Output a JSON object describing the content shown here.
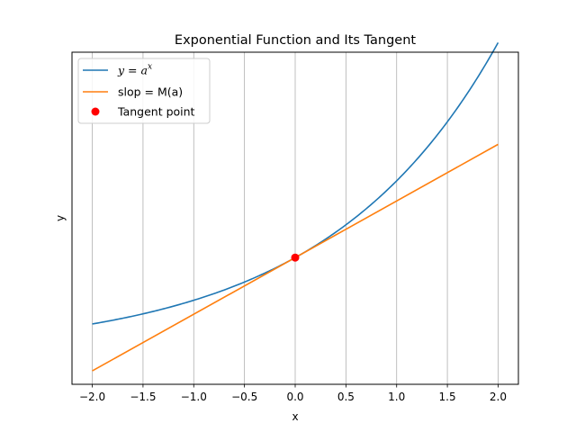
{
  "chart_data": {
    "type": "line",
    "title": "Exponential Function and Its Tangent",
    "xlabel": "x",
    "ylabel": "y",
    "xlim": [
      -2.2,
      2.2
    ],
    "ylim": [
      -0.32,
      3.14
    ],
    "xticks": [
      -2.0,
      -1.5,
      -1.0,
      -0.5,
      0.0,
      0.5,
      1.0,
      1.5,
      2.0
    ],
    "xtick_labels": [
      "−2.0",
      "−1.5",
      "−1.0",
      "−0.5",
      "0.0",
      "0.5",
      "1.0",
      "1.5",
      "2.0"
    ],
    "yticks_visible": false,
    "grid": "vertical",
    "legend_placement": "top-left",
    "base_a": 1.8,
    "series": [
      {
        "name": "$y = a^x$",
        "legend_label": "y = a",
        "legend_superscript": "x",
        "kind": "exponential",
        "x_range": [
          -2.0,
          2.0
        ],
        "color": "#1f77b4"
      },
      {
        "name": "slop = M(a)",
        "legend_label": "slop = M(a)",
        "kind": "tangent",
        "x_range": [
          -2.0,
          2.0
        ],
        "y_at_x_min": -0.18,
        "y_at_x_max": 2.18,
        "color": "#ff7f0e"
      },
      {
        "name": "Tangent point",
        "legend_label": "Tangent point",
        "kind": "point",
        "x": 0.0,
        "y": 1.0,
        "color": "#ff0000"
      }
    ]
  }
}
